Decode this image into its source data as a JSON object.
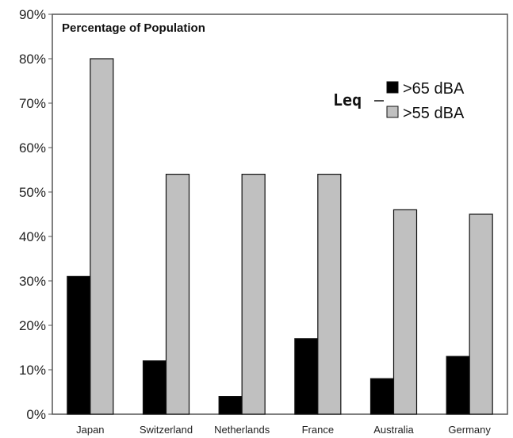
{
  "chart_data": {
    "type": "bar",
    "title": "Percentage of Population",
    "categories": [
      "Japan",
      "Switzerland",
      "Netherlands",
      "France",
      "Australia",
      "Germany"
    ],
    "series": [
      {
        "name": ">65 dBA",
        "values": [
          31,
          12,
          4,
          17,
          8,
          13
        ],
        "color": "#000000"
      },
      {
        "name": ">55 dBA",
        "values": [
          80,
          54,
          54,
          54,
          46,
          45
        ],
        "color": "#c0c0c0"
      }
    ],
    "legend_title": "Leq",
    "y_ticks": [
      "0%",
      "10%",
      "20%",
      "30%",
      "40%",
      "50%",
      "60%",
      "70%",
      "80%",
      "90%"
    ],
    "ylim": [
      0,
      90
    ],
    "grid": false,
    "legend_position": "top-right"
  }
}
